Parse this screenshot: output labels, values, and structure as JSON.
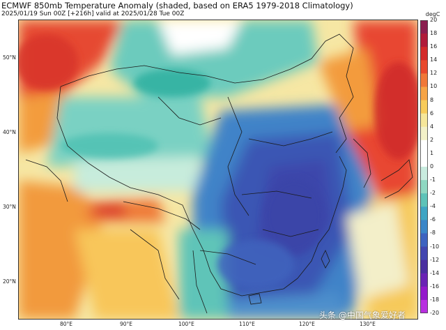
{
  "header": {
    "title": "ECMWF 850mb Temperature Anomaly (shaded, based on ERA5 1979-2018 Climatology)",
    "subtitle": "2025/01/19 Sun 00Z [+216h] valid at 2025/01/28 Tue 00Z"
  },
  "axes": {
    "lat_labels": [
      "50°N",
      "40°N",
      "30°N",
      "20°N"
    ],
    "lon_labels": [
      "80°E",
      "90°E",
      "100°E",
      "110°E",
      "120°E",
      "130°E"
    ]
  },
  "colorbar": {
    "unit": "degC",
    "ticks": [
      "20",
      "18",
      "16",
      "14",
      "12",
      "10",
      "8",
      "6",
      "4",
      "2",
      "1",
      "0",
      "-1",
      "-2",
      "-4",
      "-6",
      "-8",
      "-10",
      "-12",
      "-14",
      "-16",
      "-18",
      "-20"
    ],
    "colors": [
      "#8b1e4f",
      "#b01b3a",
      "#d42a2a",
      "#e8492d",
      "#f07838",
      "#f6a445",
      "#f8cc5a",
      "#f6e79a",
      "#f3f1c8",
      "#ffffff",
      "#ffffff",
      "#c9ecdf",
      "#8fd8c2",
      "#5dc3b8",
      "#3ea5c4",
      "#3a86c8",
      "#3d63c0",
      "#4246b0",
      "#4a2fa0",
      "#6a23b5",
      "#9419cc",
      "#b82fe0"
    ]
  },
  "watermark": "头条 @中国气象爱好者",
  "map": {
    "colors": {
      "ocean": "#dff3f2",
      "warm_strong": "#e0452d",
      "warm": "#f39b3d",
      "warm_light": "#f8d36a",
      "neutral": "#f3f0dd",
      "cool_light": "#b8e6da",
      "cool": "#58c3b8",
      "cold": "#3f80c6",
      "cold_strong": "#3a55b3",
      "border": "#1a1a1a"
    }
  }
}
